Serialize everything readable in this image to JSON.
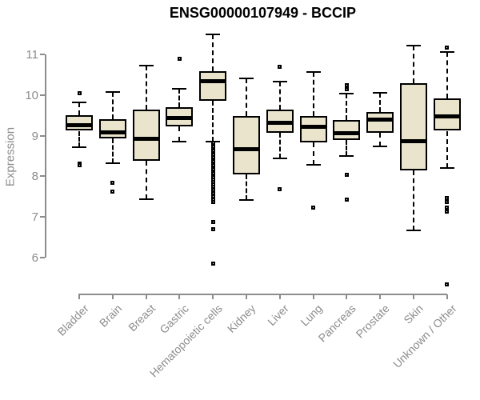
{
  "title": "ENSG00000107949 - BCCIP",
  "chart_data": {
    "type": "boxplot",
    "title": "ENSG00000107949 - BCCIP",
    "xlabel": "",
    "ylabel": "Expression",
    "ylim": [
      5.2,
      11.6
    ],
    "yticks": [
      6,
      7,
      8,
      9,
      10,
      11
    ],
    "grid": false,
    "legend": null,
    "categories": [
      "Bladder",
      "Brain",
      "Breast",
      "Gastric",
      "Hematopoietic cells",
      "Kidney",
      "Liver",
      "Lung",
      "Pancreas",
      "Prostate",
      "Skin",
      "Unknown / Other"
    ],
    "boxes": [
      {
        "category": "Bladder",
        "whisker_low": 8.72,
        "q1": 9.12,
        "median": 9.26,
        "q3": 9.5,
        "whisker_high": 9.81,
        "outliers": [
          10.05,
          8.32,
          8.28
        ]
      },
      {
        "category": "Brain",
        "whisker_low": 8.32,
        "q1": 8.93,
        "median": 9.08,
        "q3": 9.41,
        "whisker_high": 10.08,
        "outliers": [
          7.85,
          7.62
        ]
      },
      {
        "category": "Breast",
        "whisker_low": 7.43,
        "q1": 8.38,
        "median": 8.92,
        "q3": 9.64,
        "whisker_high": 10.73,
        "outliers": []
      },
      {
        "category": "Gastric",
        "whisker_low": 8.86,
        "q1": 9.23,
        "median": 9.43,
        "q3": 9.7,
        "whisker_high": 10.15,
        "outliers": [
          10.9
        ]
      },
      {
        "category": "Hematopoietic cells",
        "whisker_low": 8.85,
        "q1": 9.86,
        "median": 10.35,
        "q3": 10.59,
        "whisker_high": 11.49,
        "outliers": [
          8.82,
          8.77,
          8.72,
          8.67,
          8.62,
          8.57,
          8.52,
          8.47,
          8.42,
          8.37,
          8.32,
          8.27,
          8.22,
          8.17,
          8.12,
          8.07,
          8.02,
          7.97,
          7.92,
          7.86,
          7.8,
          7.74,
          7.67,
          7.59,
          7.51,
          7.43,
          7.36,
          6.87,
          6.7,
          5.86
        ]
      },
      {
        "category": "Kidney",
        "whisker_low": 7.42,
        "q1": 8.05,
        "median": 8.66,
        "q3": 9.49,
        "whisker_high": 10.41,
        "outliers": []
      },
      {
        "category": "Liver",
        "whisker_low": 8.44,
        "q1": 9.07,
        "median": 9.32,
        "q3": 9.64,
        "whisker_high": 10.34,
        "outliers": [
          10.7,
          7.68
        ]
      },
      {
        "category": "Lung",
        "whisker_low": 8.28,
        "q1": 8.83,
        "median": 9.22,
        "q3": 9.48,
        "whisker_high": 10.56,
        "outliers": [
          7.24
        ]
      },
      {
        "category": "Pancreas",
        "whisker_low": 8.5,
        "q1": 8.9,
        "median": 9.06,
        "q3": 9.39,
        "whisker_high": 10.03,
        "outliers": [
          10.24,
          10.14,
          8.04,
          7.43
        ]
      },
      {
        "category": "Prostate",
        "whisker_low": 8.73,
        "q1": 9.07,
        "median": 9.39,
        "q3": 9.58,
        "whisker_high": 10.06,
        "outliers": []
      },
      {
        "category": "Skin",
        "whisker_low": 6.66,
        "q1": 8.15,
        "median": 8.86,
        "q3": 10.29,
        "whisker_high": 11.22,
        "outliers": []
      },
      {
        "category": "Unknown / Other",
        "whisker_low": 8.2,
        "q1": 9.12,
        "median": 9.48,
        "q3": 9.91,
        "whisker_high": 11.05,
        "outliers": [
          11.16,
          7.46,
          7.36,
          7.24,
          7.14,
          5.34
        ]
      }
    ],
    "colors": {
      "box_fill": "#E9E4CB",
      "box_border": "#000000",
      "median": "#000000",
      "outlier_border": "#000000",
      "axis": "#8c8c8c",
      "title": "#000000",
      "background": "#ffffff"
    }
  }
}
